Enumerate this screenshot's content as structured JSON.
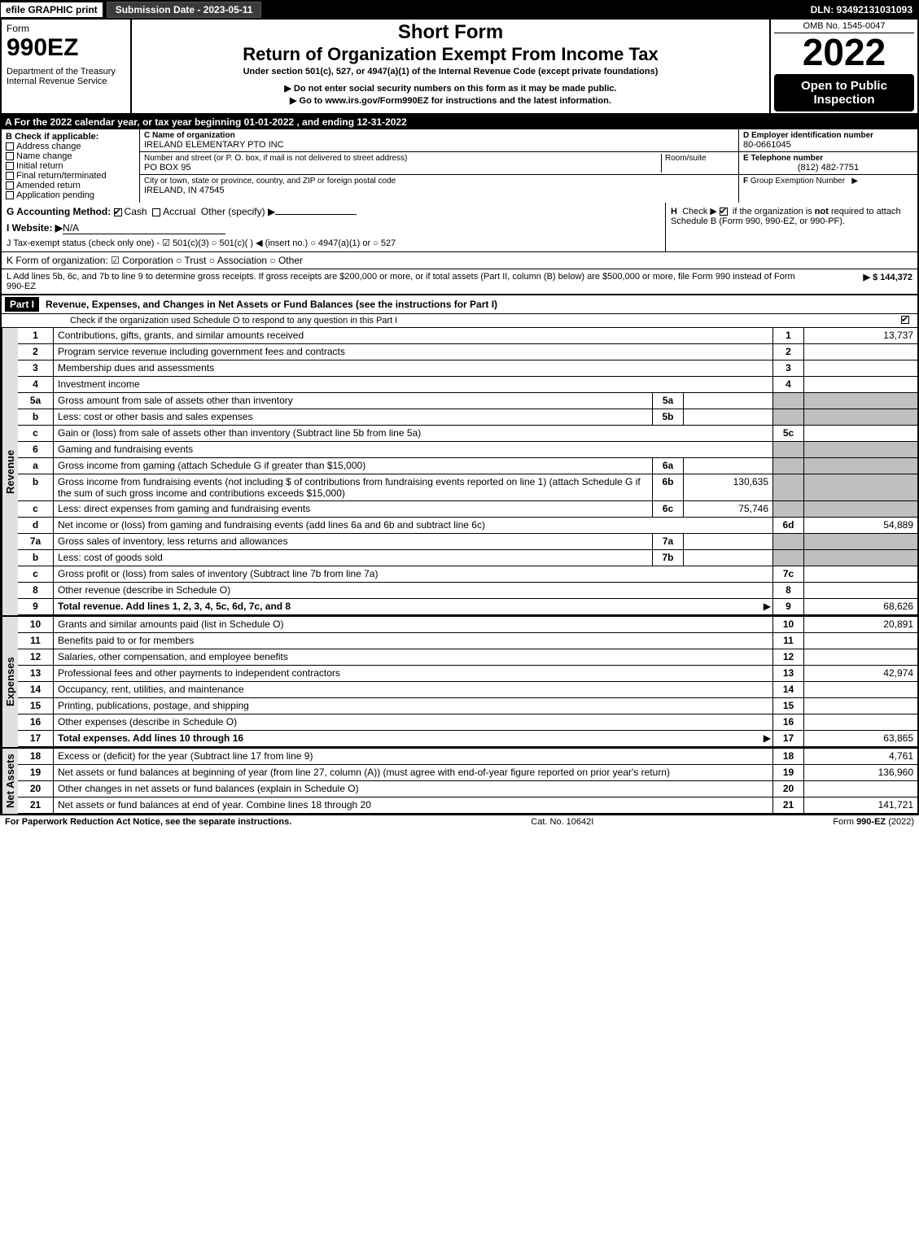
{
  "topbar": {
    "efile": "efile GRAPHIC print",
    "submission": "Submission Date - 2023-05-11",
    "dln": "DLN: 93492131031093"
  },
  "header": {
    "form_label": "Form",
    "form_no": "990EZ",
    "dept": "Department of the Treasury",
    "irs": "Internal Revenue Service",
    "short_form": "Short Form",
    "title": "Return of Organization Exempt From Income Tax",
    "subtitle": "Under section 501(c), 527, or 4947(a)(1) of the Internal Revenue Code (except private foundations)",
    "warn": "▶ Do not enter social security numbers on this form as it may be made public.",
    "goto": "▶ Go to www.irs.gov/Form990EZ for instructions and the latest information.",
    "omb": "OMB No. 1545-0047",
    "year": "2022",
    "open": "Open to Public Inspection"
  },
  "A": "A  For the 2022 calendar year, or tax year beginning 01-01-2022 , and ending 12-31-2022",
  "B": {
    "label": "B  Check if applicable:",
    "addr": "Address change",
    "name": "Name change",
    "init": "Initial return",
    "final": "Final return/terminated",
    "amend": "Amended return",
    "app": "Application pending"
  },
  "C": {
    "name_lbl": "C Name of organization",
    "name": "IRELAND ELEMENTARY PTO INC",
    "street_lbl": "Number and street (or P. O. box, if mail is not delivered to street address)",
    "room_lbl": "Room/suite",
    "street": "PO BOX 95",
    "city_lbl": "City or town, state or province, country, and ZIP or foreign postal code",
    "city": "IRELAND, IN  47545"
  },
  "D": {
    "lbl": "D Employer identification number",
    "val": "80-0661045"
  },
  "E": {
    "lbl": "E Telephone number",
    "val": "(812) 482-7751"
  },
  "F": {
    "lbl": "F Group Exemption Number  ▶"
  },
  "G": {
    "lbl": "G Accounting Method:",
    "cash": "Cash",
    "accr": "Accrual",
    "other": "Other (specify) ▶"
  },
  "H": {
    "lbl": "H",
    "txt": "Check ▶ ☑ if the organization is not required to attach Schedule B (Form 990, 990-EZ, or 990-PF)."
  },
  "I": {
    "lbl": "I Website: ▶",
    "val": "N/A"
  },
  "J": "J Tax-exempt status (check only one) - ☑ 501(c)(3)  ○ 501(c)(  ) ◀ (insert no.)  ○ 4947(a)(1) or  ○ 527",
  "K": "K Form of organization:  ☑ Corporation   ○ Trust   ○ Association   ○ Other",
  "L": {
    "txt": "L Add lines 5b, 6c, and 7b to line 9 to determine gross receipts. If gross receipts are $200,000 or more, or if total assets (Part II, column (B) below) are $500,000 or more, file Form 990 instead of Form 990-EZ",
    "amt": "▶ $ 144,372"
  },
  "part1": {
    "hdr": "Part I",
    "title": "Revenue, Expenses, and Changes in Net Assets or Fund Balances (see the instructions for Part I)",
    "check": "Check if the organization used Schedule O to respond to any question in this Part I"
  },
  "rev_label": "Revenue",
  "exp_label": "Expenses",
  "na_label": "Net Assets",
  "lines": {
    "l1": {
      "n": "1",
      "d": "Contributions, gifts, grants, and similar amounts received",
      "ln": "1",
      "amt": "13,737"
    },
    "l2": {
      "n": "2",
      "d": "Program service revenue including government fees and contracts",
      "ln": "2",
      "amt": ""
    },
    "l3": {
      "n": "3",
      "d": "Membership dues and assessments",
      "ln": "3",
      "amt": ""
    },
    "l4": {
      "n": "4",
      "d": "Investment income",
      "ln": "4",
      "amt": ""
    },
    "l5a": {
      "n": "5a",
      "d": "Gross amount from sale of assets other than inventory",
      "sub": "5a",
      "subamt": ""
    },
    "l5b": {
      "n": "b",
      "d": "Less: cost or other basis and sales expenses",
      "sub": "5b",
      "subamt": ""
    },
    "l5c": {
      "n": "c",
      "d": "Gain or (loss) from sale of assets other than inventory (Subtract line 5b from line 5a)",
      "ln": "5c",
      "amt": ""
    },
    "l6": {
      "n": "6",
      "d": "Gaming and fundraising events"
    },
    "l6a": {
      "n": "a",
      "d": "Gross income from gaming (attach Schedule G if greater than $15,000)",
      "sub": "6a",
      "subamt": ""
    },
    "l6b": {
      "n": "b",
      "d": "Gross income from fundraising events (not including $                 of contributions from fundraising events reported on line 1) (attach Schedule G if the sum of such gross income and contributions exceeds $15,000)",
      "sub": "6b",
      "subamt": "130,635"
    },
    "l6c": {
      "n": "c",
      "d": "Less: direct expenses from gaming and fundraising events",
      "sub": "6c",
      "subamt": "75,746"
    },
    "l6d": {
      "n": "d",
      "d": "Net income or (loss) from gaming and fundraising events (add lines 6a and 6b and subtract line 6c)",
      "ln": "6d",
      "amt": "54,889"
    },
    "l7a": {
      "n": "7a",
      "d": "Gross sales of inventory, less returns and allowances",
      "sub": "7a",
      "subamt": ""
    },
    "l7b": {
      "n": "b",
      "d": "Less: cost of goods sold",
      "sub": "7b",
      "subamt": ""
    },
    "l7c": {
      "n": "c",
      "d": "Gross profit or (loss) from sales of inventory (Subtract line 7b from line 7a)",
      "ln": "7c",
      "amt": ""
    },
    "l8": {
      "n": "8",
      "d": "Other revenue (describe in Schedule O)",
      "ln": "8",
      "amt": ""
    },
    "l9": {
      "n": "9",
      "d": "Total revenue. Add lines 1, 2, 3, 4, 5c, 6d, 7c, and 8",
      "ln": "9",
      "amt": "68,626",
      "arrow": "▶",
      "bold": true
    },
    "l10": {
      "n": "10",
      "d": "Grants and similar amounts paid (list in Schedule O)",
      "ln": "10",
      "amt": "20,891"
    },
    "l11": {
      "n": "11",
      "d": "Benefits paid to or for members",
      "ln": "11",
      "amt": ""
    },
    "l12": {
      "n": "12",
      "d": "Salaries, other compensation, and employee benefits",
      "ln": "12",
      "amt": ""
    },
    "l13": {
      "n": "13",
      "d": "Professional fees and other payments to independent contractors",
      "ln": "13",
      "amt": "42,974"
    },
    "l14": {
      "n": "14",
      "d": "Occupancy, rent, utilities, and maintenance",
      "ln": "14",
      "amt": ""
    },
    "l15": {
      "n": "15",
      "d": "Printing, publications, postage, and shipping",
      "ln": "15",
      "amt": ""
    },
    "l16": {
      "n": "16",
      "d": "Other expenses (describe in Schedule O)",
      "ln": "16",
      "amt": ""
    },
    "l17": {
      "n": "17",
      "d": "Total expenses. Add lines 10 through 16",
      "ln": "17",
      "amt": "63,865",
      "arrow": "▶",
      "bold": true
    },
    "l18": {
      "n": "18",
      "d": "Excess or (deficit) for the year (Subtract line 17 from line 9)",
      "ln": "18",
      "amt": "4,761"
    },
    "l19": {
      "n": "19",
      "d": "Net assets or fund balances at beginning of year (from line 27, column (A)) (must agree with end-of-year figure reported on prior year's return)",
      "ln": "19",
      "amt": "136,960"
    },
    "l20": {
      "n": "20",
      "d": "Other changes in net assets or fund balances (explain in Schedule O)",
      "ln": "20",
      "amt": ""
    },
    "l21": {
      "n": "21",
      "d": "Net assets or fund balances at end of year. Combine lines 18 through 20",
      "ln": "21",
      "amt": "141,721"
    }
  },
  "footer": {
    "pra": "For Paperwork Reduction Act Notice, see the separate instructions.",
    "cat": "Cat. No. 10642I",
    "form": "Form 990-EZ (2022)"
  }
}
